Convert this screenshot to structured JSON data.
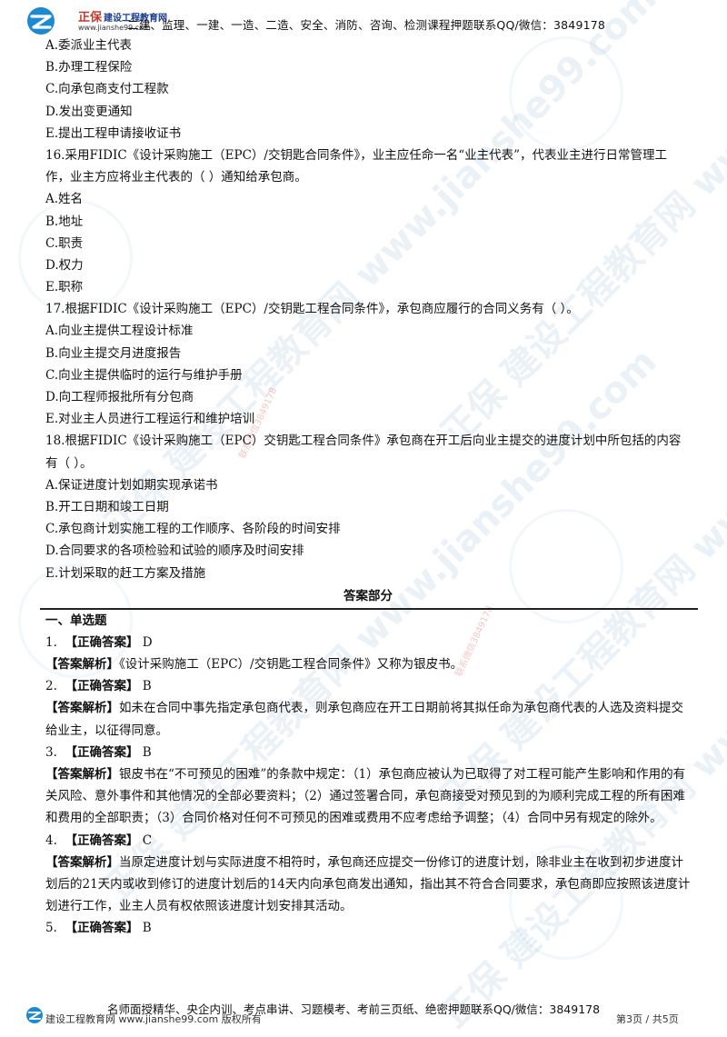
{
  "header": {
    "brand_mark": "正保",
    "brand_name": "建设工程教育网",
    "brand_url": "www.jianshe99.com",
    "promo": "二建、监理、一建、一造、二造、安全、消防、咨询、检测课程押题联系QQ/微信：3849178"
  },
  "watermark": {
    "text": "正保 建设工程教育网 www.jianshe99.com",
    "contact": "联系微信3849178"
  },
  "questions": [
    {
      "lines": [
        "A.委派业主代表",
        "B.办理工程保险",
        "C.向承包商支付工程款",
        "D.发出变更通知",
        "E.提出工程申请接收证书"
      ]
    },
    {
      "stem": "16.采用FIDIC《设计采购施工（EPC）/交钥匙合同条件》，业主应任命一名“业主代表”，代表业主进行日常管理工作，业主方应将业主代表的（  ）通知给承包商。",
      "lines": [
        "A.姓名",
        "B.地址",
        "C.职责",
        "D.权力",
        "E.职称"
      ]
    },
    {
      "stem": "17.根据FIDIC《设计采购施工（EPC）/交钥匙工程合同条件》，承包商应履行的合同义务有（  ）。",
      "lines": [
        "A.向业主提供工程设计标准",
        "B.向业主提交月进度报告",
        "C.向业主提供临时的运行与维护手册",
        "D.向工程师报批所有分包商",
        "E.对业主人员进行工程运行和维护培训"
      ]
    },
    {
      "stem": "18.根据FIDIC《设计采购施工（EPC）交钥匙工程合同条件》承包商在开工后向业主提交的进度计划中所包括的内容有（  ）。",
      "lines": [
        "A.保证进度计划如期实现承诺书",
        "B.开工日期和竣工日期",
        "C.承包商计划实施工程的工作顺序、各阶段的时间安排",
        "D.合同要求的各项检验和试验的顺序及时间安排",
        "E.计划采取的赶工方案及措施"
      ]
    }
  ],
  "answers": {
    "heading": "答案部分",
    "section": "一、单选题",
    "items": [
      {
        "num": "1.",
        "label": "【正确答案】",
        "answer": "D",
        "analysis_label": "【答案解析】",
        "analysis": "《设计采购施工（EPC）/交钥匙工程合同条件》又称为银皮书。"
      },
      {
        "num": "2.",
        "label": "【正确答案】",
        "answer": "B",
        "analysis_label": "【答案解析】",
        "analysis": "如未在合同中事先指定承包商代表，则承包商应在开工日期前将其拟任命为承包商代表的人选及资料提交给业主，以征得同意。"
      },
      {
        "num": "3.",
        "label": "【正确答案】",
        "answer": "B",
        "analysis_label": "【答案解析】",
        "analysis": "银皮书在“不可预见的困难”的条款中规定：（1）承包商应被认为已取得了对工程可能产生影响和作用的有关风险、意外事件和其他情况的全部必要资料；（2）通过签署合同，承包商接受对预见到的为顺利完成工程的所有困难和费用的全部职责；（3）合同价格对任何不可预见的困难或费用不应考虑给予调整；（4）合同中另有规定的除外。"
      },
      {
        "num": "4.",
        "label": "【正确答案】",
        "answer": "C",
        "analysis_label": "【答案解析】",
        "analysis": "当原定进度计划与实际进度不相符时，承包商还应提交一份修订的进度计划，除非业主在收到初步进度计划后的21天内或收到修订的进度计划后的14天内向承包商发出通知，指出其不符合合同要求，承包商即应按照该进度计划进行工作，业主人员有权依照该进度计划安排其活动。"
      },
      {
        "num": "5.",
        "label": "【正确答案】",
        "answer": "B"
      }
    ]
  },
  "footer": {
    "promo": "名师面授精华、央企内训、考点串讲、习题模考、考前三页纸、绝密押题联系QQ/微信：3849178",
    "left": "建设工程教育网 www.jianshe99.com 版权所有",
    "page": "第3页 / 共5页"
  }
}
